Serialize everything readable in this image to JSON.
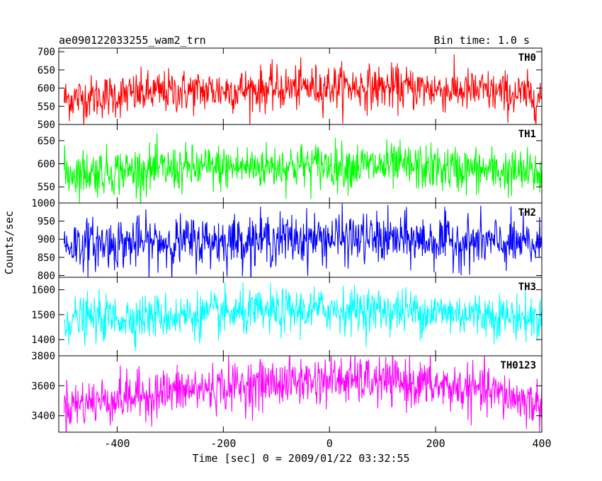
{
  "header": {
    "title": "ae090122033255_wam2_trn",
    "bin_time": "Bin time: 1.0 s"
  },
  "chart_data": {
    "type": "line",
    "xlabel": "Time [sec] 0 = 2009/01/22 03:32:55",
    "ylabel": "Counts/sec",
    "x_range": [
      -510,
      400
    ],
    "x_ticks": [
      -400,
      -200,
      0,
      200,
      400
    ],
    "x_step_sec": 1.0,
    "panels": [
      {
        "name": "TH0",
        "color": "#ff0000",
        "ylim": [
          500,
          710
        ],
        "yticks": [
          500,
          550,
          600,
          650,
          700
        ],
        "trend": [
          [
            -500,
            570
          ],
          [
            -300,
            590
          ],
          [
            -100,
            598
          ],
          [
            0,
            605
          ],
          [
            150,
            600
          ],
          [
            300,
            590
          ],
          [
            400,
            575
          ]
        ],
        "noise": 30
      },
      {
        "name": "TH1",
        "color": "#00ff00",
        "ylim": [
          515,
          685
        ],
        "yticks": [
          550,
          600,
          650
        ],
        "trend": [
          [
            -500,
            580
          ],
          [
            -300,
            588
          ],
          [
            -100,
            595
          ],
          [
            0,
            597
          ],
          [
            150,
            593
          ],
          [
            300,
            585
          ],
          [
            400,
            578
          ]
        ],
        "noise": 25
      },
      {
        "name": "TH2",
        "color": "#0000ff",
        "ylim": [
          795,
          1000
        ],
        "yticks": [
          800,
          850,
          900,
          950,
          1000
        ],
        "trend": [
          [
            -500,
            885
          ],
          [
            -300,
            892
          ],
          [
            -100,
            900
          ],
          [
            0,
            903
          ],
          [
            150,
            898
          ],
          [
            300,
            890
          ],
          [
            400,
            882
          ]
        ],
        "noise": 35
      },
      {
        "name": "TH3",
        "color": "#00ffff",
        "ylim": [
          1335,
          1650
        ],
        "yticks": [
          1400,
          1500,
          1600
        ],
        "trend": [
          [
            -500,
            1480
          ],
          [
            -300,
            1495
          ],
          [
            -100,
            1510
          ],
          [
            0,
            1522
          ],
          [
            150,
            1515
          ],
          [
            300,
            1500
          ],
          [
            400,
            1482
          ]
        ],
        "noise": 45
      },
      {
        "name": "TH0123",
        "color": "#ff00ff",
        "ylim": [
          3290,
          3800
        ],
        "yticks": [
          3400,
          3600,
          3800
        ],
        "trend": [
          [
            -500,
            3470
          ],
          [
            -300,
            3560
          ],
          [
            -100,
            3620
          ],
          [
            0,
            3640
          ],
          [
            150,
            3620
          ],
          [
            300,
            3560
          ],
          [
            400,
            3470
          ]
        ],
        "noise": 80
      }
    ]
  }
}
